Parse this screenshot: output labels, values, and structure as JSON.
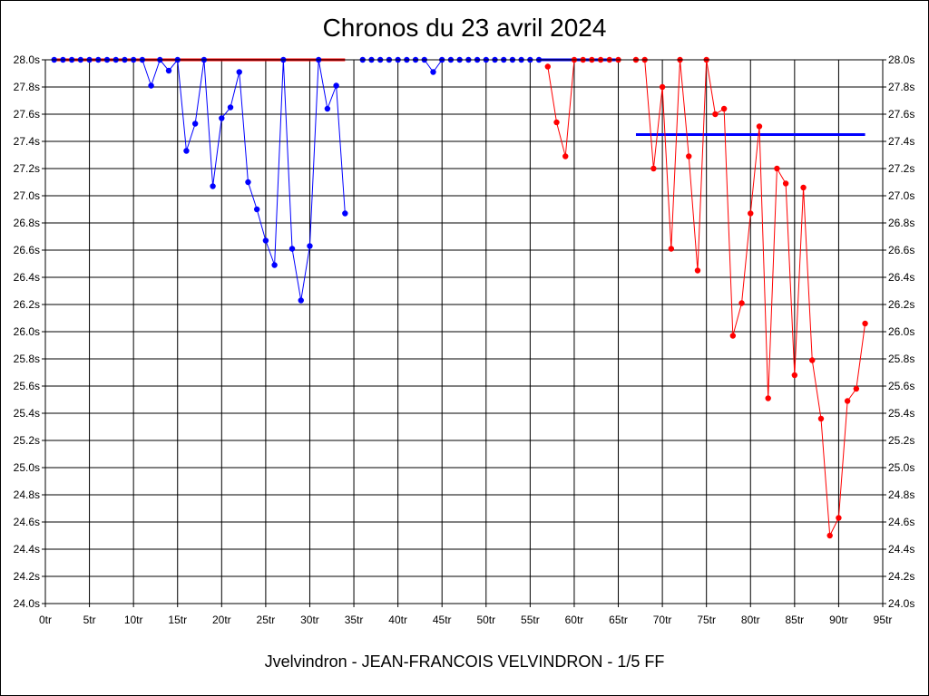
{
  "chart_data": {
    "type": "line",
    "title": "Chronos du 23 avril 2024",
    "footer": "Jvelvindron - JEAN-FRANCOIS VELVINDRON - 1/5 FF",
    "xlabel": "",
    "ylabel": "",
    "xlim": [
      0,
      95
    ],
    "ylim": [
      24.0,
      28.0
    ],
    "x_ticks": [
      0,
      5,
      10,
      15,
      20,
      25,
      30,
      35,
      40,
      45,
      50,
      55,
      60,
      65,
      70,
      75,
      80,
      85,
      90,
      95
    ],
    "x_tick_labels": [
      "0tr",
      "5tr",
      "10tr",
      "15tr",
      "20tr",
      "25tr",
      "30tr",
      "35tr",
      "40tr",
      "45tr",
      "50tr",
      "55tr",
      "60tr",
      "65tr",
      "70tr",
      "75tr",
      "80tr",
      "85tr",
      "90tr",
      "95tr"
    ],
    "y_ticks": [
      24.0,
      24.2,
      24.4,
      24.6,
      24.8,
      25.0,
      25.2,
      25.4,
      25.6,
      25.8,
      26.0,
      26.2,
      26.4,
      26.6,
      26.8,
      27.0,
      27.2,
      27.4,
      27.6,
      27.8,
      28.0
    ],
    "y_tick_labels": [
      "24.0s",
      "24.2s",
      "24.4s",
      "24.6s",
      "24.8s",
      "25.0s",
      "25.2s",
      "25.4s",
      "25.6s",
      "25.8s",
      "26.0s",
      "26.2s",
      "26.4s",
      "26.6s",
      "26.8s",
      "27.0s",
      "27.2s",
      "27.4s",
      "27.6s",
      "27.8s",
      "28.0s"
    ],
    "grid": true,
    "series": [
      {
        "color": "#0000ff",
        "x": [
          1,
          2,
          3,
          4,
          5,
          6,
          7,
          8,
          9,
          10,
          11,
          12,
          13,
          14,
          15,
          16,
          17,
          18,
          19,
          20,
          21,
          22,
          23,
          24,
          25,
          26,
          27,
          28,
          29,
          30,
          31,
          32,
          33,
          34
        ],
        "values": [
          28.0,
          28.0,
          28.0,
          28.0,
          28.0,
          28.0,
          28.0,
          28.0,
          28.0,
          28.0,
          28.0,
          27.81,
          28.0,
          27.92,
          28.0,
          27.33,
          27.53,
          28.0,
          27.07,
          27.57,
          27.65,
          27.91,
          27.1,
          26.9,
          26.67,
          26.49,
          28.0,
          26.61,
          26.23,
          26.63,
          28.0,
          27.64,
          27.81,
          26.87
        ]
      },
      {
        "color": "#0000ff",
        "x": [
          36,
          37,
          38,
          39,
          40,
          41,
          42,
          43,
          44,
          45,
          46,
          47,
          48,
          49,
          50,
          51,
          52,
          53,
          54,
          55,
          56
        ],
        "values": [
          28.0,
          28.0,
          28.0,
          28.0,
          28.0,
          28.0,
          28.0,
          28.0,
          27.91,
          28.0,
          28.0,
          28.0,
          28.0,
          28.0,
          28.0,
          28.0,
          28.0,
          28.0,
          28.0,
          28.0,
          28.0
        ]
      },
      {
        "color": "#ff0000",
        "x": [
          57,
          58,
          59,
          60,
          61,
          62,
          63,
          64,
          65
        ],
        "values": [
          27.95,
          27.54,
          27.29,
          28.0,
          28.0,
          28.0,
          28.0,
          28.0,
          28.0
        ]
      },
      {
        "color": "#ff0000",
        "x": [
          67,
          68,
          69,
          70,
          71,
          72,
          73,
          74,
          75,
          76,
          77,
          78,
          79,
          80,
          81,
          82,
          83,
          84,
          85,
          86,
          87,
          88,
          89,
          90,
          91,
          92,
          93
        ],
        "values": [
          28.0,
          28.0,
          27.2,
          27.8,
          26.61,
          28.0,
          27.29,
          26.45,
          28.0,
          27.6,
          27.64,
          25.97,
          26.21,
          26.87,
          27.51,
          25.51,
          27.2,
          27.09,
          25.68,
          27.06,
          25.79,
          25.36,
          24.5,
          24.63,
          25.49,
          25.58,
          26.06
        ]
      }
    ],
    "reference_lines": [
      {
        "color": "#ff0000",
        "x": [
          1,
          34
        ],
        "y": 28.0
      },
      {
        "color": "#0000ff",
        "x": [
          56,
          65
        ],
        "y": 28.0
      },
      {
        "color": "#0000ff",
        "x": [
          67,
          93
        ],
        "y": 27.45
      }
    ]
  }
}
